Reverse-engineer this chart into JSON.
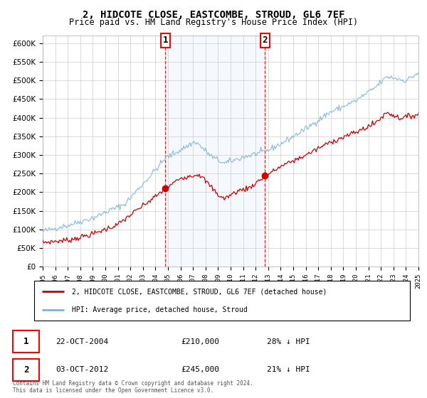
{
  "title": "2, HIDCOTE CLOSE, EASTCOMBE, STROUD, GL6 7EF",
  "subtitle": "Price paid vs. HM Land Registry's House Price Index (HPI)",
  "ylim": [
    0,
    620000
  ],
  "yticks": [
    0,
    50000,
    100000,
    150000,
    200000,
    250000,
    300000,
    350000,
    400000,
    450000,
    500000,
    550000,
    600000
  ],
  "sale1_date": "22-OCT-2004",
  "sale1_price": 210000,
  "sale1_pct": "28%",
  "sale2_date": "03-OCT-2012",
  "sale2_price": 245000,
  "sale2_pct": "21%",
  "sale1_x": 2004.8,
  "sale2_x": 2012.75,
  "hpi_color": "#7ab4d8",
  "sold_color": "#cc0000",
  "background_shade": "#ddeeff",
  "legend_label_sold": "2, HIDCOTE CLOSE, EASTCOMBE, STROUD, GL6 7EF (detached house)",
  "legend_label_hpi": "HPI: Average price, detached house, Stroud",
  "footer": "Contains HM Land Registry data © Crown copyright and database right 2024.\nThis data is licensed under the Open Government Licence v3.0.",
  "xmin": 1995,
  "xmax": 2025,
  "hpi_seed": 42,
  "red_seed": 7
}
